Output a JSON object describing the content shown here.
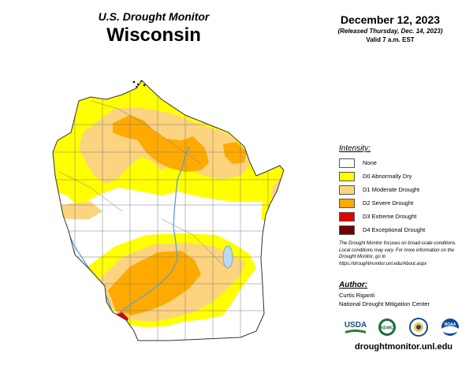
{
  "header": {
    "product_name": "U.S. Drought Monitor",
    "state": "Wisconsin",
    "date": "December 12, 2023",
    "released": "(Released Thursday, Dec. 14, 2023)",
    "valid": "Valid 7 a.m. EST"
  },
  "legend": {
    "title": "Intensity:",
    "items": [
      {
        "label": "None",
        "color": "#ffffff"
      },
      {
        "label": "D0 Abnormally Dry",
        "color": "#ffff00"
      },
      {
        "label": "D1 Moderate Drought",
        "color": "#fcd37f"
      },
      {
        "label": "D2 Severe Drought",
        "color": "#ffaa00"
      },
      {
        "label": "D3 Extreme Drought",
        "color": "#e60000"
      },
      {
        "label": "D4 Exceptional Drought",
        "color": "#730000"
      }
    ]
  },
  "note": "The Drought Monitor focuses on broad-scale conditions. Local conditions may vary. For more information on the Drought Monitor, go to https://droughtmonitor.unl.edu/About.aspx",
  "author": {
    "heading": "Author:",
    "name": "Curtis Riganti",
    "org": "National Drought Mitigation Center"
  },
  "logos": {
    "usda": "USDA",
    "ndmc": "NDMC",
    "doc_icon": "department-of-commerce-seal-icon",
    "noaa": "NOAA"
  },
  "url": "droughtmonitor.unl.edu",
  "colors": {
    "water": "#5aa0d8",
    "county_lines": "#7a7a7a"
  }
}
